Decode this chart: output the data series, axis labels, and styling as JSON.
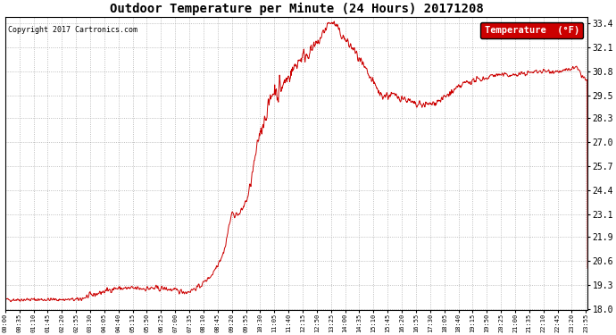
{
  "title": "Outdoor Temperature per Minute (24 Hours) 20171208",
  "copyright_text": "Copyright 2017 Cartronics.com",
  "legend_label": "Temperature  (°F)",
  "line_color": "#cc0000",
  "background_color": "#ffffff",
  "grid_color": "#999999",
  "yticks": [
    18.0,
    19.3,
    20.6,
    21.9,
    23.1,
    24.4,
    25.7,
    27.0,
    28.3,
    29.5,
    30.8,
    32.1,
    33.4
  ],
  "ymin": 18.0,
  "ymax": 33.4,
  "x_tick_interval_minutes": 35,
  "total_minutes": 1440
}
